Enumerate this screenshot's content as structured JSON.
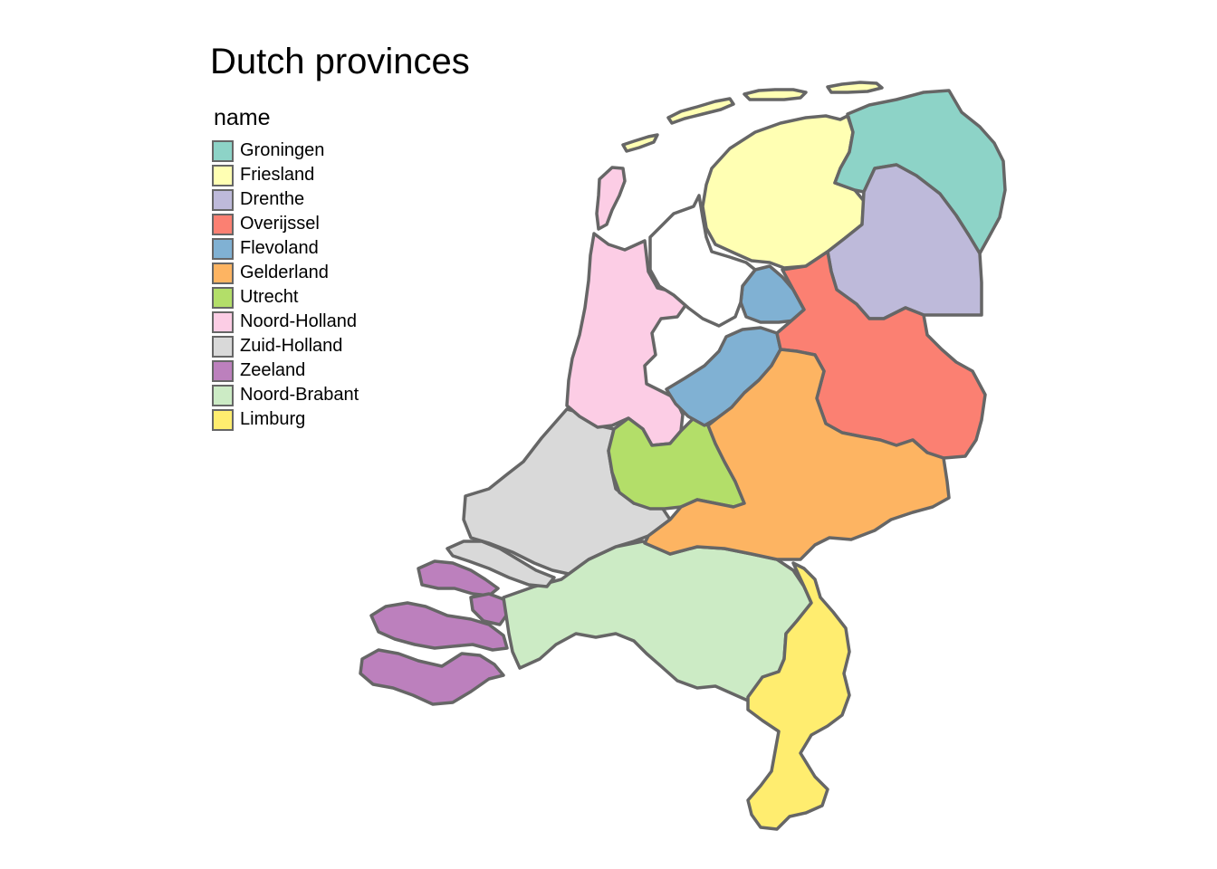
{
  "map": {
    "title": "Dutch provinces",
    "legend": {
      "title": "name",
      "items": [
        {
          "label": "Groningen",
          "color": "#8DD3C7"
        },
        {
          "label": "Friesland",
          "color": "#FFFFB3"
        },
        {
          "label": "Drenthe",
          "color": "#BEBADA"
        },
        {
          "label": "Overijssel",
          "color": "#FB8072"
        },
        {
          "label": "Flevoland",
          "color": "#80B1D3"
        },
        {
          "label": "Gelderland",
          "color": "#FDB462"
        },
        {
          "label": "Utrecht",
          "color": "#B3DE69"
        },
        {
          "label": "Noord-Holland",
          "color": "#FCCDE5"
        },
        {
          "label": "Zuid-Holland",
          "color": "#D9D9D9"
        },
        {
          "label": "Zeeland",
          "color": "#BC80BD"
        },
        {
          "label": "Noord-Brabant",
          "color": "#CCEBC5"
        },
        {
          "label": "Limburg",
          "color": "#FFED6F"
        }
      ]
    },
    "border_color": "#666666"
  }
}
